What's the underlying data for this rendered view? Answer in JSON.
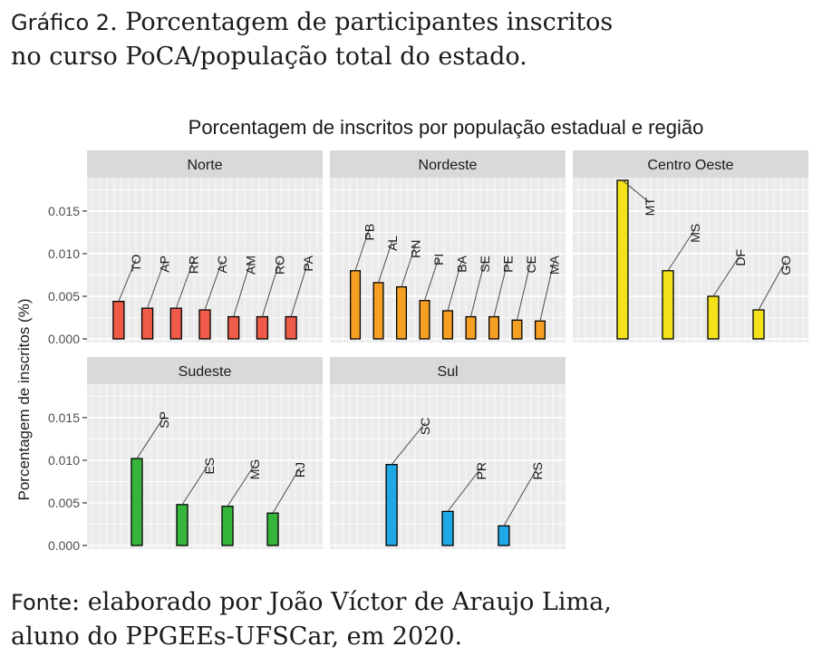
{
  "caption": {
    "label": "Gráfico 2",
    "separator": ". ",
    "text_line1": "Porcentagem de participantes inscritos",
    "text_line2": "no curso PoCA/população total do estado."
  },
  "source": {
    "label": "Fonte",
    "separator": ": ",
    "text_line1": "elaborado por João Víctor de Araujo Lima,",
    "text_line2": "aluno do PPGEEs-UFSCar, em 2020."
  },
  "chart_data": {
    "type": "bar",
    "title": "Porcentagem de inscritos por população estadual e região",
    "ylabel": "Porcentagem de inscritos (%)",
    "xlabel": "",
    "ylim": [
      0,
      0.0185
    ],
    "yticks": [
      "0.000",
      "0.005",
      "0.010",
      "0.015"
    ],
    "grid": true,
    "legend": "none",
    "panels": [
      {
        "name": "Norte",
        "color": "#ef5b48",
        "states": [
          {
            "label": "TO",
            "value": 0.0044
          },
          {
            "label": "AP",
            "value": 0.0036
          },
          {
            "label": "RR",
            "value": 0.0036
          },
          {
            "label": "AC",
            "value": 0.0034
          },
          {
            "label": "AM",
            "value": 0.0026
          },
          {
            "label": "RO",
            "value": 0.0026
          },
          {
            "label": "PA",
            "value": 0.0026
          }
        ]
      },
      {
        "name": "Nordeste",
        "color": "#f5a023",
        "states": [
          {
            "label": "PB",
            "value": 0.008
          },
          {
            "label": "AL",
            "value": 0.0066
          },
          {
            "label": "RN",
            "value": 0.0061
          },
          {
            "label": "PI",
            "value": 0.0045
          },
          {
            "label": "BA",
            "value": 0.0033
          },
          {
            "label": "SE",
            "value": 0.0026
          },
          {
            "label": "PE",
            "value": 0.0026
          },
          {
            "label": "CE",
            "value": 0.0022
          },
          {
            "label": "MA",
            "value": 0.0021
          }
        ]
      },
      {
        "name": "Centro Oeste",
        "color": "#f3e11a",
        "states": [
          {
            "label": "MT",
            "value": 0.0186
          },
          {
            "label": "MS",
            "value": 0.008
          },
          {
            "label": "DF",
            "value": 0.005
          },
          {
            "label": "GO",
            "value": 0.0034
          }
        ]
      },
      {
        "name": "Sudeste",
        "color": "#35b63a",
        "states": [
          {
            "label": "SP",
            "value": 0.0102
          },
          {
            "label": "ES",
            "value": 0.0048
          },
          {
            "label": "MG",
            "value": 0.0046
          },
          {
            "label": "RJ",
            "value": 0.0038
          }
        ]
      },
      {
        "name": "Sul",
        "color": "#1ea8e6",
        "states": [
          {
            "label": "SC",
            "value": 0.0095
          },
          {
            "label": "PR",
            "value": 0.004
          },
          {
            "label": "RS",
            "value": 0.0023
          }
        ]
      }
    ]
  }
}
